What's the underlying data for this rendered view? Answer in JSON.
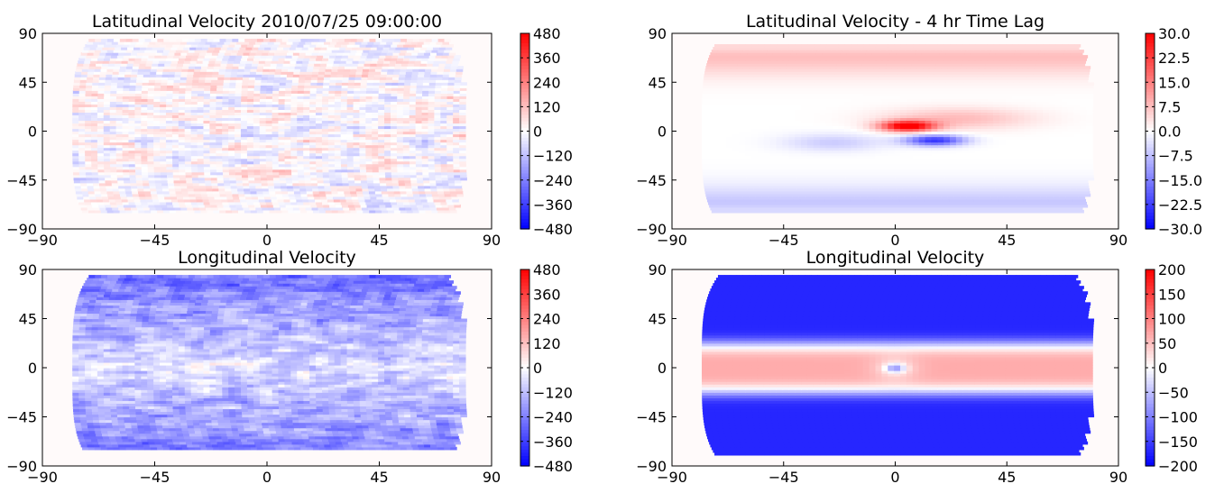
{
  "colors": {
    "negative": "#0000ff",
    "zero": "#ffffff",
    "positive": "#ff0000",
    "mask": "#fffafa",
    "frame": "#000000"
  },
  "chart_data": [
    {
      "type": "heatmap",
      "title": "Latitudinal Velocity 2010/07/25 09:00:00",
      "xlabel": "",
      "ylabel": "",
      "xlim": [
        -90,
        90
      ],
      "ylim": [
        -90,
        90
      ],
      "xticks": [
        "−90",
        "−45",
        "0",
        "45",
        "90"
      ],
      "yticks": [
        "90",
        "45",
        "0",
        "−45",
        "−90"
      ],
      "colormap": "bwr",
      "clim": [
        -480,
        480
      ],
      "colorbar_ticks": [
        "480",
        "360",
        "240",
        "120",
        "0",
        "−120",
        "−240",
        "−360",
        "−480"
      ],
      "colorbar_values": [
        480,
        360,
        240,
        120,
        0,
        -120,
        -240,
        -360,
        -480
      ],
      "data_extent": {
        "lon": [
          -72,
          72
        ],
        "lat": [
          -75,
          83
        ]
      },
      "field_description": "noisy small-scale granular pattern of mixed positive and negative values, magnitude mostly under 200"
    },
    {
      "type": "heatmap",
      "title": "Latitudinal Velocity - 4 hr Time Lag",
      "xlabel": "",
      "ylabel": "",
      "xlim": [
        -90,
        90
      ],
      "ylim": [
        -90,
        90
      ],
      "xticks": [
        "−90",
        "−45",
        "0",
        "45",
        "90"
      ],
      "yticks": [
        "90",
        "45",
        "0",
        "−45",
        "−90"
      ],
      "colormap": "bwr",
      "clim": [
        -30,
        30
      ],
      "colorbar_ticks": [
        "30.0",
        "22.5",
        "15.0",
        "7.5",
        "0.0",
        "−7.5",
        "−15.0",
        "−22.5",
        "−30.0"
      ],
      "colorbar_values": [
        30,
        22.5,
        15,
        7.5,
        0,
        -7.5,
        -15,
        -22.5,
        -30
      ],
      "data_extent": {
        "lon": [
          -72,
          72
        ],
        "lat": [
          -75,
          80
        ]
      },
      "field_description": "smooth field: positive (about +10) in the northern band, negative (about -10) in the southern band, strong positive peak near lon 5 lat 5 and strong negative trough near lon 15 lat -8"
    },
    {
      "type": "heatmap",
      "title": "Longitudinal Velocity",
      "xlabel": "",
      "ylabel": "",
      "xlim": [
        -90,
        90
      ],
      "ylim": [
        -90,
        90
      ],
      "xticks": [
        "−90",
        "−45",
        "0",
        "45",
        "90"
      ],
      "yticks": [
        "90",
        "45",
        "0",
        "−45",
        "−90"
      ],
      "colormap": "bwr",
      "clim": [
        -480,
        480
      ],
      "colorbar_ticks": [
        "480",
        "360",
        "240",
        "120",
        "0",
        "−120",
        "−240",
        "−360",
        "−480"
      ],
      "colorbar_values": [
        480,
        360,
        240,
        120,
        0,
        -120,
        -240,
        -360,
        -480
      ],
      "data_extent": {
        "lon": [
          -72,
          72
        ],
        "lat": [
          -75,
          83
        ]
      },
      "field_description": "noisy pattern, predominantly negative (blue) especially at high latitudes, some weak positive patches near the equator"
    },
    {
      "type": "heatmap",
      "title": "Longitudinal Velocity",
      "xlabel": "",
      "ylabel": "",
      "xlim": [
        -90,
        90
      ],
      "ylim": [
        -90,
        90
      ],
      "xticks": [
        "−90",
        "−45",
        "0",
        "45",
        "90"
      ],
      "yticks": [
        "90",
        "45",
        "0",
        "−45",
        "−90"
      ],
      "colormap": "bwr",
      "clim": [
        -200,
        200
      ],
      "colorbar_ticks": [
        "200",
        "150",
        "100",
        "50",
        "0",
        "−50",
        "−100",
        "−150",
        "−200"
      ],
      "colorbar_values": [
        200,
        150,
        100,
        50,
        0,
        -50,
        -100,
        -150,
        -200
      ],
      "data_extent": {
        "lon": [
          -72,
          72
        ],
        "lat": [
          -80,
          83
        ]
      },
      "field_description": "smooth zonal bands: about +60 near the equator, about -160 poleward of 45 degrees, small negative spot at lon 0 lat 0"
    }
  ]
}
